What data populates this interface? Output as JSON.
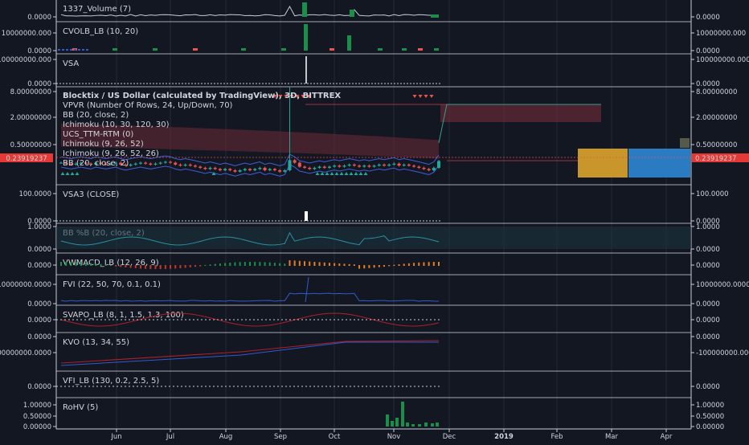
{
  "colors": {
    "background": "#131722",
    "separator": "#c8ccd6",
    "grid": "#242a38",
    "up": "#26a69a",
    "down": "#ef5350",
    "price_label_bg": "#e53935",
    "cloud_red": "#6b2a36",
    "cloud_green": "#1e4a3f",
    "boxGold": "#c8962a",
    "boxBlue": "#2a7bc2",
    "line_blue": "#2f5bd0",
    "line_red": "#b01f2a",
    "teal": "#2b8fa3"
  },
  "x_axis": {
    "labels": [
      "Jun",
      "Jul",
      "Aug",
      "Sep",
      "Oct",
      "Nov",
      "Dec",
      "2019",
      "Feb",
      "Mar",
      "Apr"
    ]
  },
  "last_price": "0.23919237",
  "panes": [
    {
      "id": "volume",
      "title": "1337_Volume (7)",
      "left_ticks": [
        "0.0000"
      ],
      "right_ticks": [
        "0.0000"
      ]
    },
    {
      "id": "cvolb",
      "title": "CVOLB_LB (10, 20)",
      "left_ticks": [
        "10000000.000",
        "0.0000"
      ],
      "right_ticks": [
        "10000000.000",
        "0.0000"
      ]
    },
    {
      "id": "vsa",
      "title": "VSA",
      "left_ticks": [
        "100000000.000",
        "0.0000"
      ],
      "right_ticks": [
        "100000000.000",
        "0.0000"
      ]
    },
    {
      "id": "price",
      "title": "Blocktix / US Dollar (calculated by TradingView), 3D, BITTREX",
      "indicators": [
        "VPVR (Number Of Rows, 24, Up/Down, 70)",
        "BB (20, close, 2)",
        "Ichimoku (10, 30, 120, 30)",
        "UCS_TTM-RTM (0)",
        "Ichimoku (9, 26, 52)",
        "Ichimoku (9, 26, 52, 26)",
        "BB (20, close, 2)"
      ],
      "left_ticks": [
        "8.00000000",
        "2.00000000",
        "0.50000000",
        "0.23919237"
      ],
      "right_ticks": [
        "8.00000000",
        "2.00000000",
        "0.50000000",
        "0.23919237"
      ]
    },
    {
      "id": "vsa3",
      "title": "VSA3 (CLOSE)",
      "left_ticks": [
        "100.0000",
        "0.0000"
      ],
      "right_ticks": [
        "100.0000",
        "0.0000"
      ]
    },
    {
      "id": "bbpct",
      "title": "BB %B (20, close, 2)",
      "left_ticks": [
        "1.0000",
        "0.0000"
      ],
      "right_ticks": [
        "1.0000",
        "0.0000"
      ]
    },
    {
      "id": "vwmacd",
      "title": "VWMACD_LB (12, 26, 9)",
      "left_ticks": [
        "0.0000"
      ],
      "right_ticks": [
        "0.0000"
      ]
    },
    {
      "id": "fvi",
      "title": "FVI (22, 50, 70, 0.1, 0.1)",
      "left_ticks": [
        "10000000.0000",
        "0.0000"
      ],
      "right_ticks": [
        "10000000.0000",
        "0.0000"
      ]
    },
    {
      "id": "svapo",
      "title": "SVAPO_LB (8, 1, 1.5, 1.3, 100)",
      "left_ticks": [
        "0.0000"
      ],
      "right_ticks": [
        "0.0000"
      ]
    },
    {
      "id": "kvo",
      "title": "KVO (13, 34, 55)",
      "left_ticks": [
        "0.0000",
        "-100000000.0000"
      ],
      "right_ticks": [
        "0.0000",
        "-100000000.0000"
      ]
    },
    {
      "id": "vfi",
      "title": "VFI_LB (130, 0.2, 2.5, 5)",
      "left_ticks": [
        "0.0000"
      ],
      "right_ticks": [
        "0.0000"
      ]
    },
    {
      "id": "rohv",
      "title": "RoHV (5)",
      "left_ticks": [
        "1.00000",
        "0.50000",
        "0.00000"
      ],
      "right_ticks": [
        "1.00000",
        "0.50000",
        "0.00000"
      ]
    }
  ],
  "chart_data": {
    "type": "candlestick",
    "title": "Blocktix / US Dollar (calculated by TradingView), 3D, BITTREX",
    "scale": "log",
    "ylim": [
      0.1,
      8.0
    ],
    "last_price": 0.23919237,
    "series": [
      {
        "name": "Blocktix / US Dollar",
        "close": [
          0.22,
          0.21,
          0.2,
          0.21,
          0.22,
          0.21,
          0.2,
          0.22,
          0.21,
          0.2,
          0.21,
          0.22,
          0.2,
          0.19,
          0.2,
          0.21,
          0.22,
          0.21,
          0.2,
          0.21,
          0.22,
          0.23,
          0.22,
          0.2,
          0.19,
          0.2,
          0.19,
          0.18,
          0.17,
          0.16,
          0.17,
          0.16,
          0.15,
          0.16,
          0.15,
          0.14,
          0.15,
          0.16,
          0.15,
          0.16,
          0.17,
          0.15,
          0.16,
          0.15,
          0.14,
          0.15,
          0.25,
          0.22,
          0.18,
          0.17,
          0.16,
          0.17,
          0.18,
          0.17,
          0.18,
          0.19,
          0.18,
          0.19,
          0.2,
          0.19,
          0.18,
          0.19,
          0.18,
          0.19,
          0.2,
          0.19,
          0.2,
          0.21,
          0.19,
          0.2,
          0.19,
          0.18,
          0.17,
          0.16,
          0.15,
          0.17,
          0.24
        ]
      }
    ],
    "ichimoku_cloud_projection": true
  }
}
